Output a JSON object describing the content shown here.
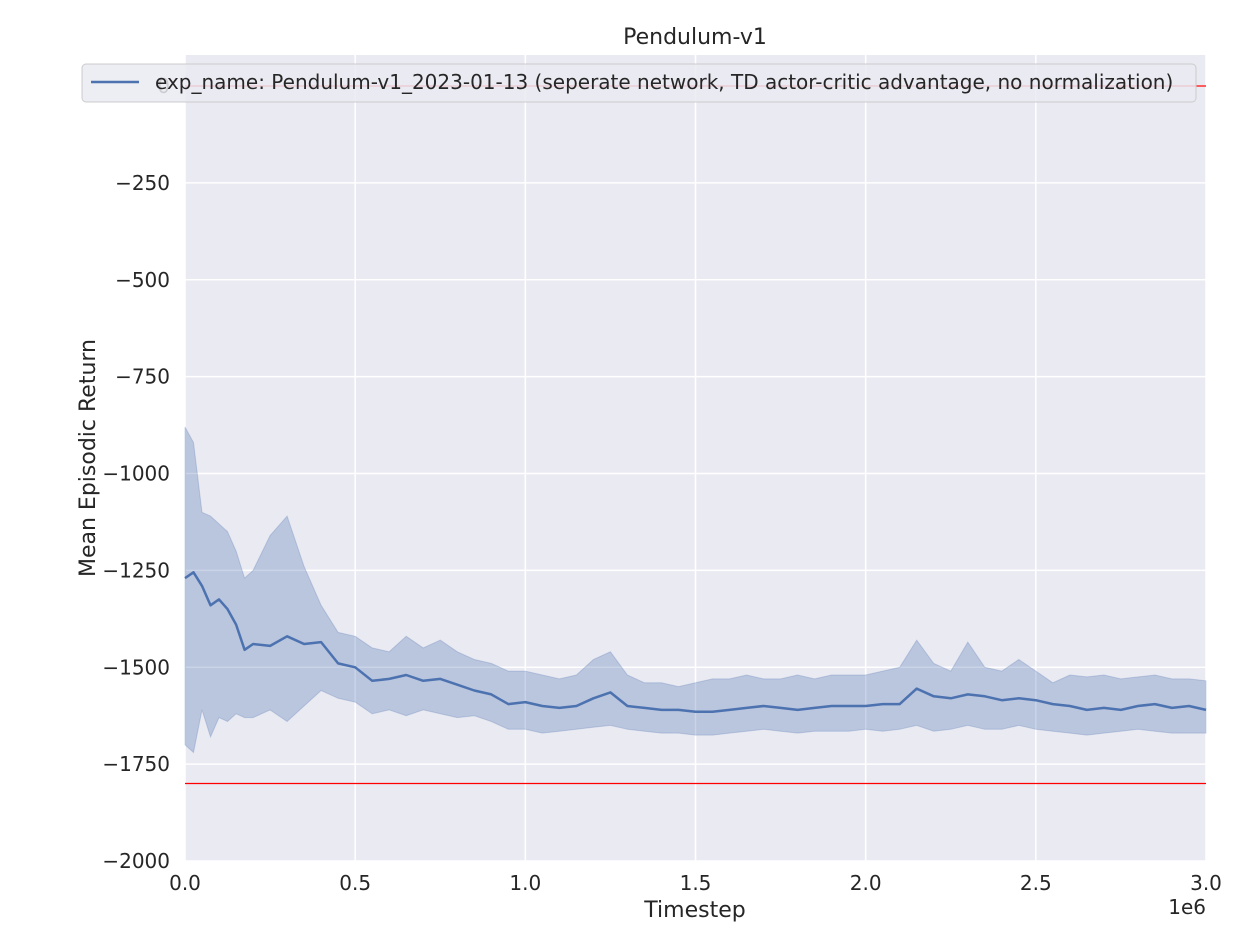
{
  "chart_data": {
    "type": "line",
    "title": "Pendulum-v1",
    "xlabel": "Timestep",
    "ylabel": "Mean Episodic Return",
    "x_offset_label": "1e6",
    "x_scale": 1000000,
    "xlim": [
      0,
      3000000
    ],
    "ylim": [
      -2000,
      80
    ],
    "xticks": [
      0,
      500000,
      1000000,
      1500000,
      2000000,
      2500000,
      3000000
    ],
    "xtick_labels": [
      "0.0",
      "0.5",
      "1.0",
      "1.5",
      "2.0",
      "2.5",
      "3.0"
    ],
    "yticks": [
      0,
      -250,
      -500,
      -750,
      -1000,
      -1250,
      -1500,
      -1750,
      -2000
    ],
    "ytick_labels": [
      "0",
      "−250",
      "−500",
      "−750",
      "−1000",
      "−1250",
      "−1500",
      "−1750",
      "−2000"
    ],
    "grid": true,
    "legend_position": "top-center",
    "hlines": [
      {
        "y": 0,
        "color": "#ff0000"
      },
      {
        "y": -1800,
        "color": "#ff0000"
      }
    ],
    "colors": {
      "background": "#eaeaf2",
      "grid": "#ffffff",
      "line": "#4c72b0",
      "band": "#4c72b0"
    },
    "series": [
      {
        "name": "exp_name: Pendulum-v1_2023-01-13 (seperate network, TD actor-critic advantage, no normalization)",
        "x": [
          0,
          25000,
          50000,
          75000,
          100000,
          125000,
          150000,
          175000,
          200000,
          250000,
          300000,
          350000,
          400000,
          450000,
          500000,
          550000,
          600000,
          650000,
          700000,
          750000,
          800000,
          850000,
          900000,
          950000,
          1000000,
          1050000,
          1100000,
          1150000,
          1200000,
          1250000,
          1300000,
          1350000,
          1400000,
          1450000,
          1500000,
          1550000,
          1600000,
          1650000,
          1700000,
          1750000,
          1800000,
          1850000,
          1900000,
          1950000,
          2000000,
          2050000,
          2100000,
          2150000,
          2200000,
          2250000,
          2300000,
          2350000,
          2400000,
          2450000,
          2500000,
          2550000,
          2600000,
          2650000,
          2700000,
          2750000,
          2800000,
          2850000,
          2900000,
          2950000,
          3000000
        ],
        "mean": [
          -1270,
          -1255,
          -1290,
          -1340,
          -1325,
          -1350,
          -1390,
          -1455,
          -1440,
          -1445,
          -1420,
          -1440,
          -1435,
          -1490,
          -1500,
          -1535,
          -1530,
          -1520,
          -1535,
          -1530,
          -1545,
          -1560,
          -1570,
          -1595,
          -1590,
          -1600,
          -1605,
          -1600,
          -1580,
          -1565,
          -1600,
          -1605,
          -1610,
          -1610,
          -1615,
          -1615,
          -1610,
          -1605,
          -1600,
          -1605,
          -1610,
          -1605,
          -1600,
          -1600,
          -1600,
          -1595,
          -1595,
          -1555,
          -1575,
          -1580,
          -1570,
          -1575,
          -1585,
          -1580,
          -1585,
          -1595,
          -1600,
          -1610,
          -1605,
          -1610,
          -1600,
          -1595,
          -1605,
          -1600,
          -1610
        ],
        "upper": [
          -880,
          -920,
          -1100,
          -1110,
          -1130,
          -1150,
          -1200,
          -1270,
          -1250,
          -1160,
          -1110,
          -1240,
          -1340,
          -1410,
          -1420,
          -1450,
          -1460,
          -1420,
          -1450,
          -1430,
          -1460,
          -1480,
          -1490,
          -1510,
          -1510,
          -1520,
          -1530,
          -1520,
          -1480,
          -1460,
          -1520,
          -1540,
          -1540,
          -1550,
          -1540,
          -1530,
          -1530,
          -1520,
          -1530,
          -1530,
          -1520,
          -1530,
          -1520,
          -1520,
          -1520,
          -1510,
          -1500,
          -1430,
          -1490,
          -1510,
          -1435,
          -1500,
          -1510,
          -1480,
          -1510,
          -1540,
          -1520,
          -1525,
          -1520,
          -1530,
          -1525,
          -1520,
          -1530,
          -1530,
          -1535
        ],
        "lower": [
          -1700,
          -1720,
          -1610,
          -1680,
          -1630,
          -1640,
          -1620,
          -1630,
          -1630,
          -1610,
          -1640,
          -1600,
          -1560,
          -1580,
          -1590,
          -1620,
          -1610,
          -1625,
          -1610,
          -1620,
          -1630,
          -1625,
          -1640,
          -1660,
          -1660,
          -1670,
          -1665,
          -1660,
          -1655,
          -1650,
          -1660,
          -1665,
          -1670,
          -1670,
          -1675,
          -1675,
          -1670,
          -1665,
          -1660,
          -1665,
          -1670,
          -1665,
          -1665,
          -1665,
          -1660,
          -1665,
          -1660,
          -1650,
          -1665,
          -1660,
          -1650,
          -1660,
          -1660,
          -1650,
          -1660,
          -1665,
          -1670,
          -1675,
          -1670,
          -1665,
          -1660,
          -1665,
          -1670,
          -1670,
          -1670
        ]
      }
    ]
  }
}
